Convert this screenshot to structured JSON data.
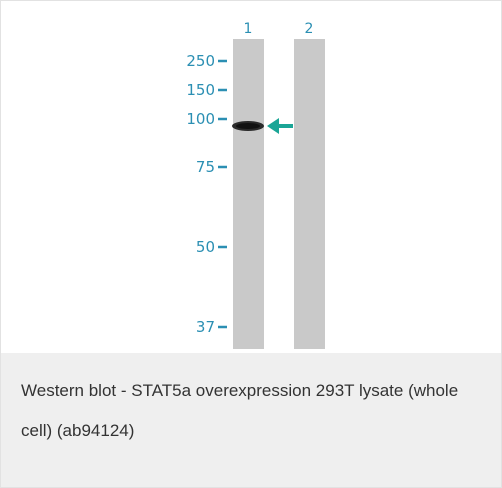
{
  "blot": {
    "lanes": [
      "1",
      "2"
    ],
    "markers": [
      "250",
      "150",
      "100",
      "75",
      "50",
      "37"
    ]
  },
  "caption": "Western blot - STAT5a overexpression 293T lysate (whole cell) (ab94124)"
}
